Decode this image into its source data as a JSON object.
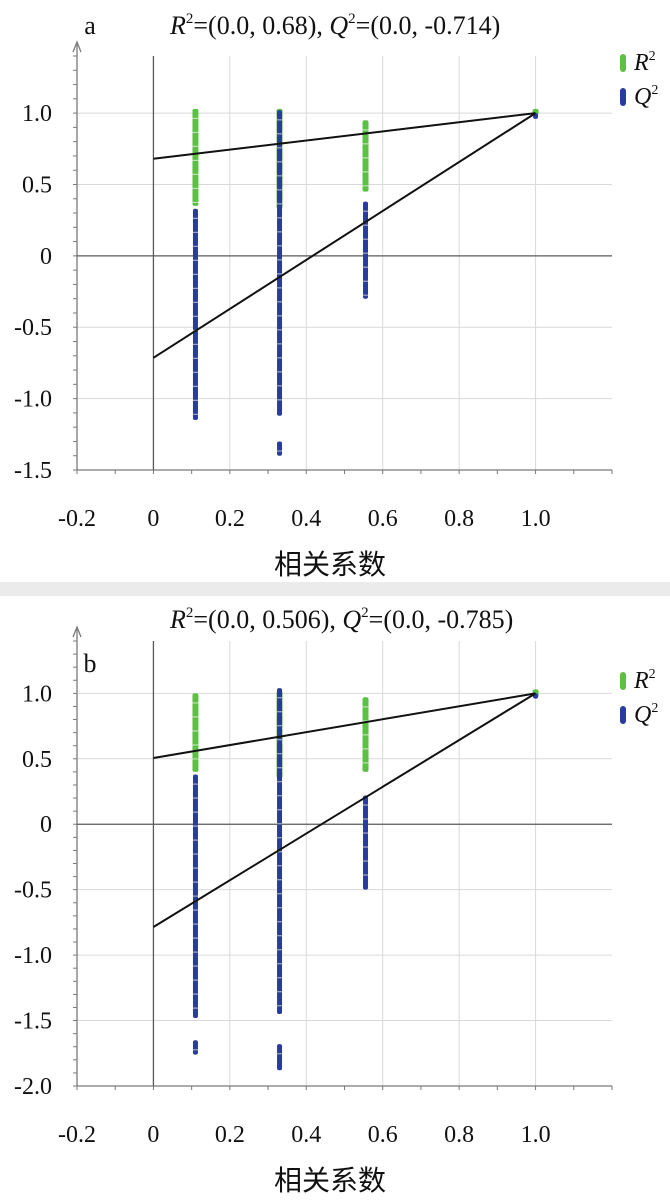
{
  "chart_data": [
    {
      "type": "scatter",
      "panel_label": "a",
      "title_r2": "R",
      "title_r2_val": "=(0.0, 0.68), ",
      "title_q2": "Q",
      "title_q2_val": "=(0.0, -0.714)",
      "sup": "2",
      "xlabel": "相关系数",
      "xlim": [
        -0.2,
        1.2
      ],
      "ylim": [
        -1.5,
        1.4
      ],
      "xticks": [
        -0.2,
        0,
        0.2,
        0.4,
        0.6,
        0.8,
        1.0
      ],
      "xtick_labels": [
        "-0.2",
        "0",
        "0.2",
        "0.4",
        "0.6",
        "0.8",
        "1.0"
      ],
      "yticks": [
        1.0,
        0.5,
        0,
        -0.5,
        -1.0,
        -1.5
      ],
      "ytick_labels": [
        "1.0",
        "0.5",
        "0",
        "-0.5",
        "-1.0",
        "-1.5"
      ],
      "legend": [
        "R",
        "Q"
      ],
      "legend_placement": "top-right",
      "colors": {
        "r2": "#5cc045",
        "q2": "#2a3ba0"
      },
      "series": [
        {
          "name": "R",
          "columns": [
            {
              "x": 0.11,
              "ranges": [
                [
                  0.35,
                  1.03
                ]
              ]
            },
            {
              "x": 0.33,
              "ranges": [
                [
                  0.33,
                  1.03
                ]
              ]
            },
            {
              "x": 0.555,
              "ranges": [
                [
                  0.45,
                  0.95
                ]
              ]
            },
            {
              "x": 1.0,
              "ranges": [
                [
                  0.99,
                  1.03
                ]
              ]
            }
          ]
        },
        {
          "name": "Q",
          "columns": [
            {
              "x": 0.11,
              "ranges": [
                [
                  -1.15,
                  0.33
                ]
              ]
            },
            {
              "x": 0.33,
              "ranges": [
                [
                  -1.12,
                  1.02
                ],
                [
                  -1.4,
                  -1.3
                ]
              ]
            },
            {
              "x": 0.555,
              "ranges": [
                [
                  -0.3,
                  0.38
                ]
              ]
            },
            {
              "x": 1.0,
              "ranges": [
                [
                  0.96,
                  1.0
                ]
              ]
            }
          ]
        }
      ],
      "regression_lines": [
        {
          "name": "R",
          "intercept": 0.68,
          "point": [
            1.0,
            1.0
          ]
        },
        {
          "name": "Q",
          "intercept": -0.714,
          "point": [
            1.0,
            1.0
          ]
        }
      ]
    },
    {
      "type": "scatter",
      "panel_label": "b",
      "title_r2": "R",
      "title_r2_val": "=(0.0, 0.506), ",
      "title_q2": "Q",
      "title_q2_val": "=(0.0, -0.785)",
      "sup": "2",
      "xlabel": "相关系数",
      "xlim": [
        -0.2,
        1.2
      ],
      "ylim": [
        -2.0,
        1.4
      ],
      "xticks": [
        -0.2,
        0,
        0.2,
        0.4,
        0.6,
        0.8,
        1.0
      ],
      "xtick_labels": [
        "-0.2",
        "0",
        "0.2",
        "0.4",
        "0.6",
        "0.8",
        "1.0"
      ],
      "yticks": [
        1.0,
        0.5,
        0,
        -0.5,
        -1.0,
        -1.5,
        -2.0
      ],
      "ytick_labels": [
        "1.0",
        "0.5",
        "0",
        "-0.5",
        "-1.0",
        "-1.5",
        "-2.0"
      ],
      "legend": [
        "R",
        "Q"
      ],
      "legend_placement": "top-right",
      "colors": {
        "r2": "#5cc045",
        "q2": "#2a3ba0"
      },
      "series": [
        {
          "name": "R",
          "columns": [
            {
              "x": 0.11,
              "ranges": [
                [
                  0.4,
                  1.0
                ]
              ]
            },
            {
              "x": 0.33,
              "ranges": [
                [
                  0.35,
                  1.02
                ]
              ]
            },
            {
              "x": 0.555,
              "ranges": [
                [
                  0.4,
                  0.97
                ]
              ]
            },
            {
              "x": 1.0,
              "ranges": [
                [
                  0.97,
                  1.03
                ]
              ]
            }
          ]
        },
        {
          "name": "Q",
          "columns": [
            {
              "x": 0.11,
              "ranges": [
                [
                  -1.48,
                  0.38
                ],
                [
                  -1.76,
                  -1.65
                ]
              ]
            },
            {
              "x": 0.33,
              "ranges": [
                [
                  -1.45,
                  1.04
                ],
                [
                  -1.88,
                  -1.68
                ]
              ]
            },
            {
              "x": 0.555,
              "ranges": [
                [
                  -0.5,
                  0.22
                ]
              ]
            },
            {
              "x": 1.0,
              "ranges": [
                [
                  0.96,
                  1.0
                ]
              ]
            }
          ]
        }
      ],
      "regression_lines": [
        {
          "name": "R",
          "intercept": 0.506,
          "point": [
            1.0,
            1.0
          ]
        },
        {
          "name": "Q",
          "intercept": -0.785,
          "point": [
            1.0,
            1.0
          ]
        }
      ]
    }
  ]
}
